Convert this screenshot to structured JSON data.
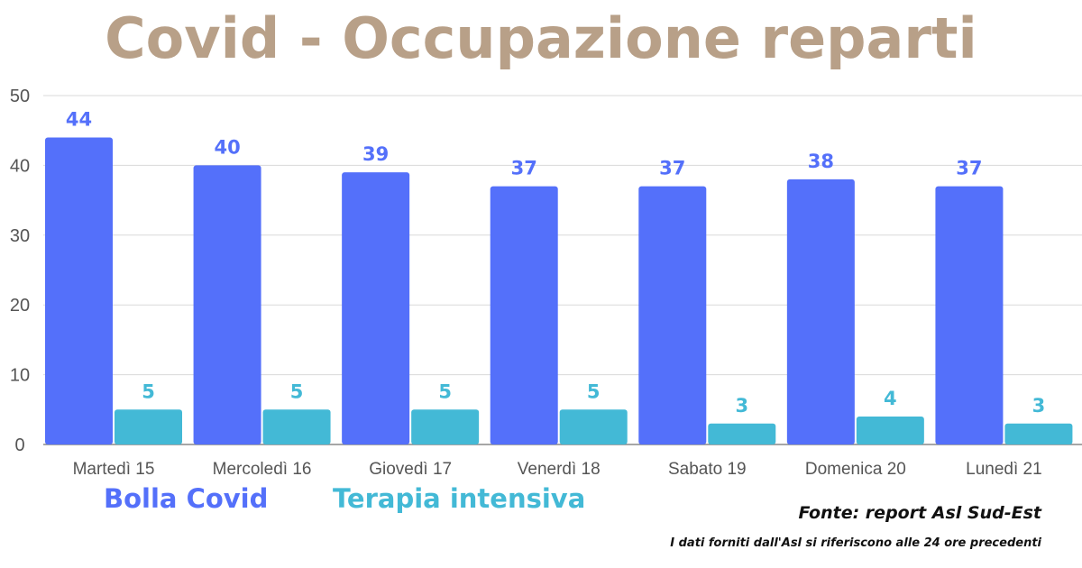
{
  "colors": {
    "title": "#B8A088",
    "series_1": "#5470FA",
    "series_2": "#43B9D6",
    "grid": "#D9D9D9",
    "axis": "#888888",
    "text": "#555555"
  },
  "chart_data": {
    "type": "bar",
    "title": "Covid - Occupazione reparti",
    "xlabel": "",
    "ylabel": "",
    "ylim": [
      0,
      50
    ],
    "yticks": [
      0,
      10,
      20,
      30,
      40,
      50
    ],
    "grid": true,
    "legend_position": "bottom-left",
    "categories": [
      "Martedì 15",
      "Mercoledì 16",
      "Giovedì 17",
      "Venerdì 18",
      "Sabato 19",
      "Domenica 20",
      "Lunedì 21"
    ],
    "series": [
      {
        "name": "Bolla Covid",
        "values": [
          44,
          40,
          39,
          37,
          37,
          38,
          37
        ]
      },
      {
        "name": "Terapia intensiva",
        "values": [
          5,
          5,
          5,
          5,
          3,
          4,
          3
        ]
      }
    ]
  },
  "source": "Fonte: report Asl Sud-Est",
  "note": "I dati forniti dall'Asl si riferiscono alle 24 ore precedenti"
}
